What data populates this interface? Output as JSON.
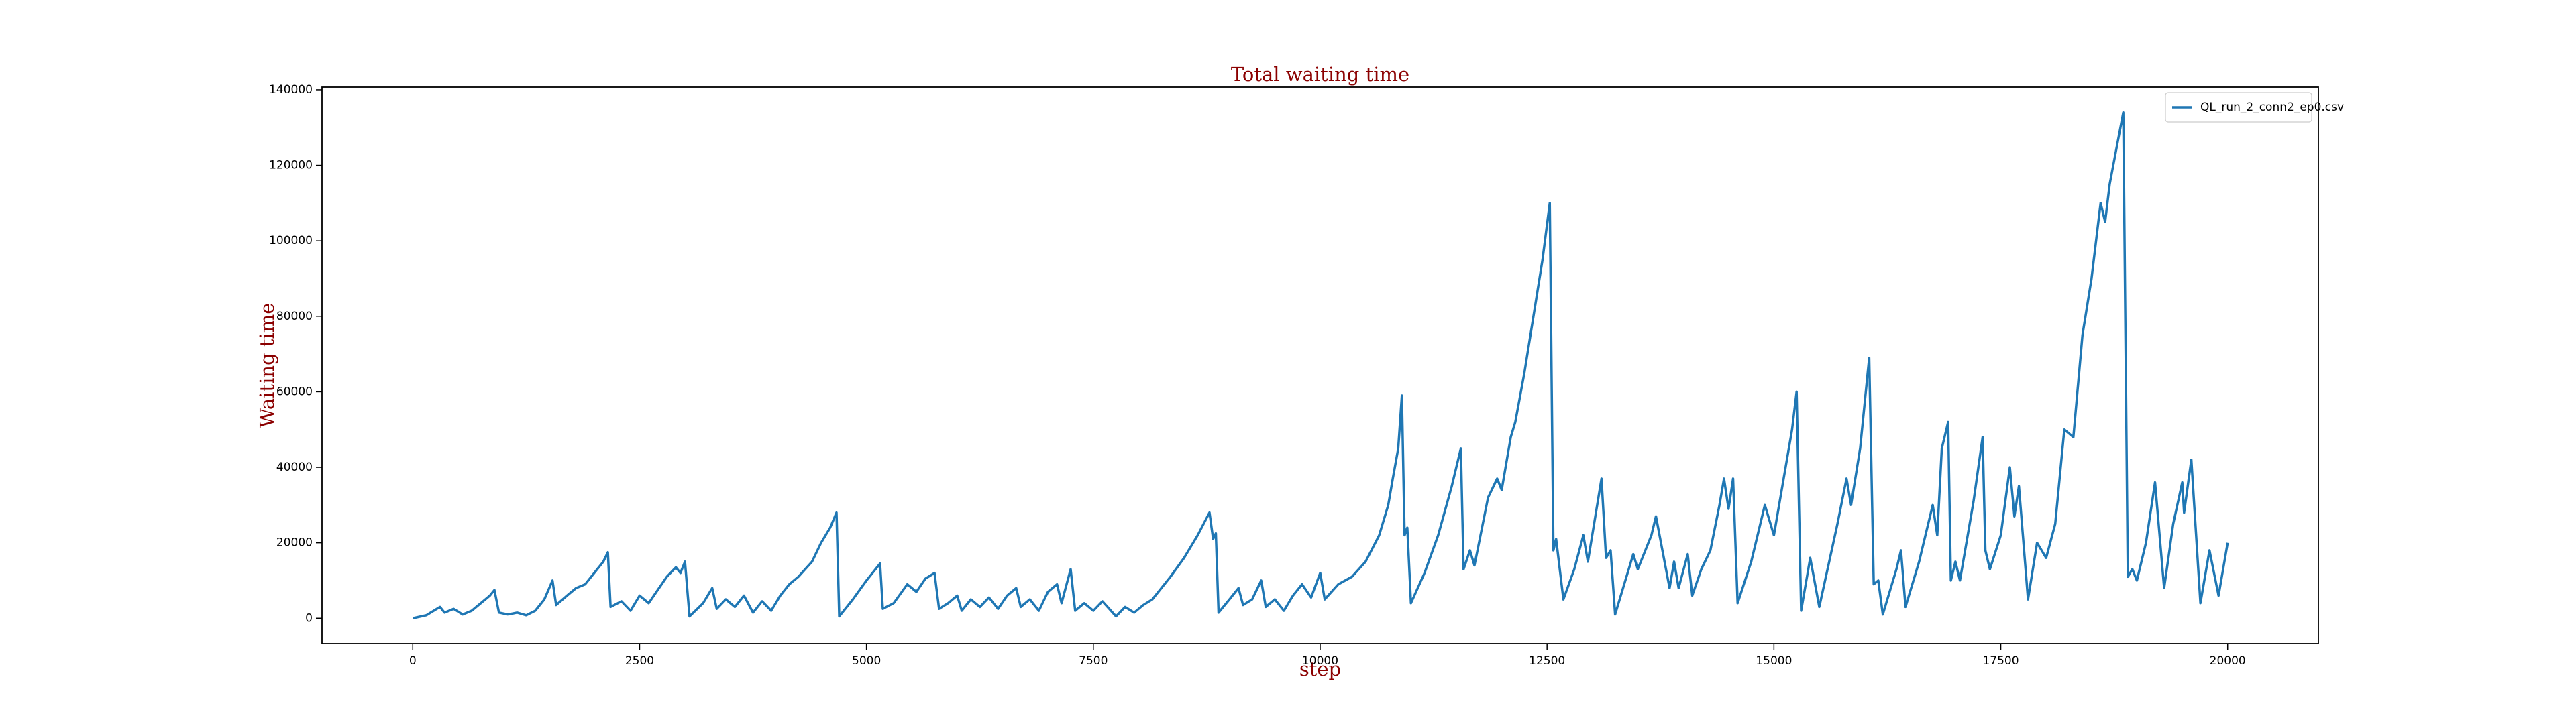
{
  "chart_data": {
    "type": "line",
    "title": "Total waiting time",
    "xlabel": "step",
    "ylabel": "Waiting time",
    "legend": "upper right",
    "grid": false,
    "xlim": [
      -1000,
      21000
    ],
    "xticks": [
      0,
      2500,
      5000,
      7500,
      10000,
      12500,
      15000,
      17500,
      20000
    ],
    "ylim": [
      -6700,
      140700
    ],
    "yticks": [
      0,
      20000,
      40000,
      60000,
      80000,
      100000,
      120000,
      140000
    ],
    "x": [
      0,
      150,
      300,
      350,
      450,
      550,
      650,
      750,
      850,
      900,
      950,
      1050,
      1150,
      1250,
      1350,
      1450,
      1540,
      1580,
      1700,
      1800,
      1900,
      2000,
      2100,
      2150,
      2180,
      2300,
      2400,
      2500,
      2600,
      2700,
      2800,
      2900,
      2950,
      3000,
      3050,
      3200,
      3300,
      3350,
      3450,
      3550,
      3650,
      3750,
      3850,
      3950,
      4050,
      4150,
      4250,
      4400,
      4500,
      4600,
      4670,
      4700,
      4850,
      5000,
      5150,
      5180,
      5300,
      5450,
      5550,
      5650,
      5750,
      5800,
      5900,
      6000,
      6050,
      6150,
      6250,
      6350,
      6450,
      6550,
      6650,
      6700,
      6800,
      6900,
      7000,
      7100,
      7150,
      7250,
      7300,
      7400,
      7500,
      7600,
      7750,
      7850,
      7950,
      8050,
      8150,
      8250,
      8350,
      8500,
      8650,
      8780,
      8820,
      8850,
      8880,
      9000,
      9100,
      9150,
      9250,
      9350,
      9400,
      9500,
      9600,
      9700,
      9800,
      9900,
      10000,
      10050,
      10200,
      10350,
      10500,
      10650,
      10750,
      10800,
      10860,
      10900,
      10930,
      10960,
      11000,
      11150,
      11300,
      11450,
      11550,
      11580,
      11650,
      11700,
      11850,
      11950,
      12000,
      12100,
      12150,
      12250,
      12350,
      12450,
      12530,
      12570,
      12600,
      12680,
      12800,
      12900,
      12950,
      13100,
      13150,
      13200,
      13250,
      13400,
      13450,
      13500,
      13650,
      13700,
      13850,
      13900,
      13950,
      14050,
      14100,
      14200,
      14300,
      14400,
      14450,
      14500,
      14550,
      14600,
      14750,
      14900,
      15000,
      15200,
      15250,
      15300,
      15400,
      15500,
      15700,
      15800,
      15850,
      15950,
      16050,
      16100,
      16150,
      16200,
      16350,
      16400,
      16450,
      16600,
      16750,
      16800,
      16850,
      16920,
      16950,
      17000,
      17050,
      17200,
      17300,
      17330,
      17380,
      17500,
      17600,
      17650,
      17700,
      17800,
      17900,
      18000,
      18100,
      18200,
      18300,
      18400,
      18500,
      18600,
      18650,
      18700,
      18850,
      18900,
      18950,
      19000,
      19100,
      19200,
      19300,
      19400,
      19500,
      19520,
      19600,
      19700,
      19800,
      19900,
      20000
    ],
    "series": [
      {
        "name": "QL_run_2_conn2_ep0.csv",
        "color": "#1f77b4",
        "values": [
          0,
          800,
          3000,
          1500,
          2500,
          1000,
          2000,
          4000,
          6000,
          7500,
          1500,
          1000,
          1500,
          800,
          2000,
          5000,
          10000,
          3500,
          6000,
          8000,
          9000,
          12000,
          15000,
          17500,
          3000,
          4500,
          2000,
          6000,
          4000,
          7500,
          11000,
          13500,
          12000,
          15000,
          500,
          4000,
          8000,
          2500,
          5000,
          3000,
          6000,
          1500,
          4500,
          2000,
          6000,
          9000,
          11000,
          15000,
          20000,
          24000,
          28000,
          500,
          5000,
          10000,
          14500,
          2500,
          4000,
          9000,
          7000,
          10500,
          12000,
          2500,
          4000,
          6000,
          2000,
          5000,
          3000,
          5500,
          2500,
          6000,
          8000,
          3000,
          5000,
          2000,
          7000,
          9000,
          4000,
          13000,
          2000,
          4000,
          2000,
          4500,
          500,
          3000,
          1500,
          3500,
          5000,
          8000,
          11000,
          16000,
          22000,
          28000,
          21000,
          22500,
          1500,
          5000,
          8000,
          3500,
          5000,
          10000,
          3000,
          5000,
          2000,
          6000,
          9000,
          5500,
          12000,
          5000,
          9000,
          11000,
          15000,
          22000,
          30000,
          37000,
          45000,
          59000,
          22000,
          24000,
          4000,
          12000,
          22000,
          35000,
          45000,
          13000,
          18000,
          14000,
          32000,
          37000,
          34000,
          48000,
          52000,
          65000,
          80000,
          95000,
          110000,
          18000,
          21000,
          5000,
          13000,
          22000,
          15000,
          37000,
          16000,
          18000,
          1000,
          13000,
          17000,
          13000,
          22000,
          27000,
          8000,
          15000,
          8000,
          17000,
          6000,
          13000,
          18000,
          30000,
          37000,
          29000,
          37000,
          4000,
          15000,
          30000,
          22000,
          50000,
          60000,
          2000,
          16000,
          3000,
          25000,
          37000,
          30000,
          45000,
          69000,
          9000,
          10000,
          1000,
          13000,
          18000,
          3000,
          15000,
          30000,
          22000,
          45000,
          52000,
          10000,
          15000,
          10000,
          31000,
          48000,
          18000,
          13000,
          22000,
          40000,
          27000,
          35000,
          5000,
          20000,
          16000,
          25000,
          50000,
          48000,
          75000,
          90000,
          110000,
          105000,
          115000,
          134000,
          11000,
          13000,
          10000,
          20000,
          36000,
          8000,
          25000,
          36000,
          28000,
          42000,
          4000,
          18000,
          6000,
          20000
        ]
      }
    ]
  }
}
